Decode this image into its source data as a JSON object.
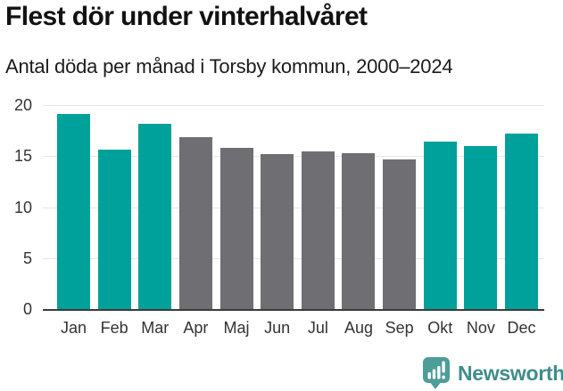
{
  "header": {
    "title": "Flest dör under vinterhalvåret",
    "subtitle": "Antal döda per månad i Torsby kommun, 2000–2024"
  },
  "chart_data": {
    "type": "bar",
    "title": "Flest dör under vinterhalvåret",
    "subtitle": "Antal döda per månad i Torsby kommun, 2000–2024",
    "categories": [
      "Jan",
      "Feb",
      "Mar",
      "Apr",
      "Maj",
      "Jun",
      "Jul",
      "Aug",
      "Sep",
      "Okt",
      "Nov",
      "Dec"
    ],
    "values": [
      19.1,
      15.6,
      18.2,
      16.9,
      15.8,
      15.2,
      15.5,
      15.3,
      14.7,
      16.4,
      16.0,
      17.2
    ],
    "highlighted": [
      true,
      true,
      true,
      false,
      false,
      false,
      false,
      false,
      false,
      true,
      true,
      true
    ],
    "highlight_color": "#00a09b",
    "base_color": "#6e6e73",
    "xlabel": "",
    "ylabel": "",
    "ylim": [
      0,
      20
    ],
    "yticks": [
      0,
      5,
      10,
      15,
      20
    ],
    "grid": "horizontal-only",
    "gridline_color": "#e6e6e6",
    "axis_line_color": "#3b3b3b",
    "legend": "none"
  },
  "footer": {
    "brand": "Newsworthy",
    "logo_icon": "newsworthy-chart-bubble-icon",
    "brand_color": "#3f8d89",
    "logo_color": "#4d9d98"
  }
}
